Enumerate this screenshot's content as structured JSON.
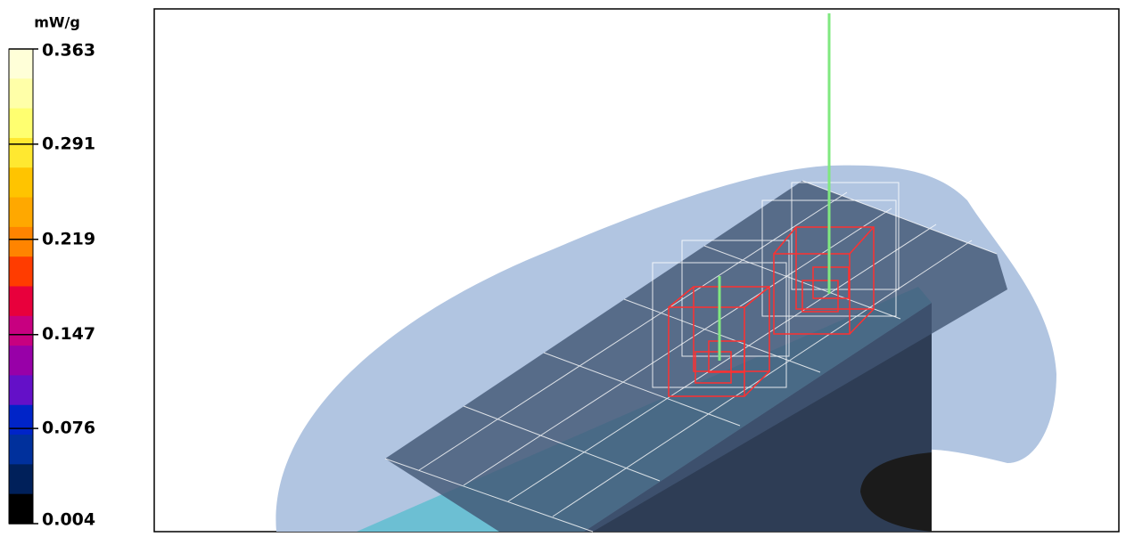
{
  "colorbar": {
    "unit": "mW/g",
    "ticks": [
      0.363,
      0.291,
      0.219,
      0.147,
      0.076,
      0.004
    ],
    "lim": [
      0.004,
      0.363
    ],
    "colors": [
      "#ffffd8",
      "#ffffa8",
      "#ffff70",
      "#ffe830",
      "#ffc400",
      "#ffa800",
      "#ff8400",
      "#ff3c00",
      "#e8003c",
      "#c80080",
      "#9800a8",
      "#6410c8",
      "#0024c8",
      "#00309c",
      "#00205a",
      "#000000"
    ]
  }
}
